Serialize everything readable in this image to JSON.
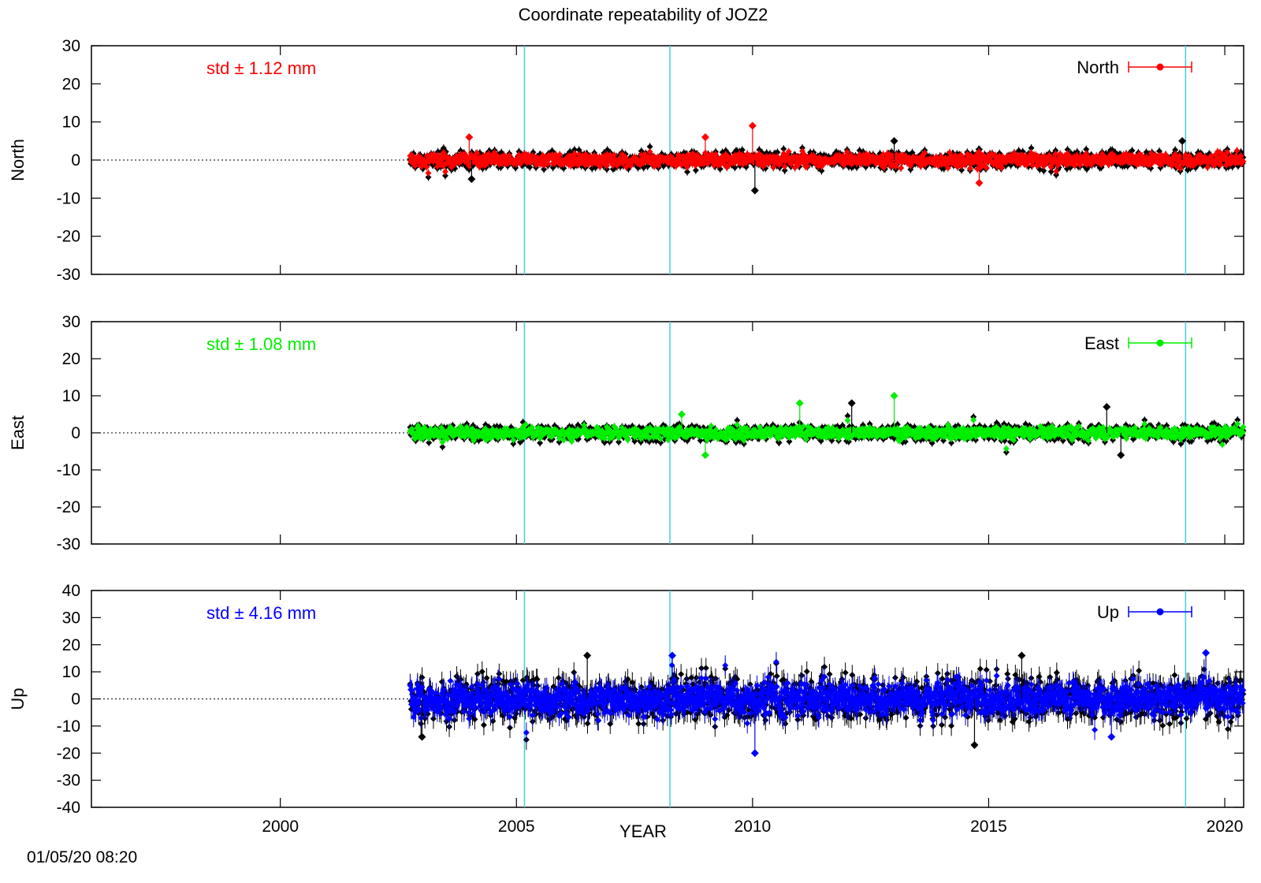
{
  "title": "Coordinate repeatability of JOZ2",
  "timestamp": "01/05/20 08:20",
  "xlabel": "YEAR",
  "colors": {
    "North": "#ff0000",
    "East": "#00ee00",
    "Up": "#0000ff",
    "shadow": "#000000",
    "event_lines": "#40d0e0"
  },
  "chart_data": {
    "type": "scatter",
    "x_range": [
      1996.0,
      2020.4
    ],
    "x_ticks": [
      2000,
      2005,
      2010,
      2015,
      2020
    ],
    "event_years": [
      2005.17,
      2008.25,
      2019.17
    ],
    "data_start": 2002.75,
    "data_end": 2020.4,
    "panels": [
      {
        "name": "North",
        "ylabel": "North",
        "legend": "North",
        "std_label": "std ± 1.12 mm",
        "std": 1.12,
        "ylim": [
          -30,
          30
        ],
        "yticks": [
          -30,
          -20,
          -10,
          0,
          10,
          20,
          30
        ],
        "spikes": [
          [
            2010.0,
            9
          ],
          [
            2010.05,
            -8
          ],
          [
            2009.0,
            6
          ],
          [
            2013.0,
            5
          ],
          [
            2014.8,
            -6
          ],
          [
            2019.1,
            5
          ],
          [
            2004.0,
            6
          ],
          [
            2004.05,
            -5
          ]
        ]
      },
      {
        "name": "East",
        "ylabel": "East",
        "legend": "East",
        "std_label": "std ± 1.08 mm",
        "std": 1.08,
        "ylim": [
          -30,
          30
        ],
        "yticks": [
          -30,
          -20,
          -10,
          0,
          10,
          20,
          30
        ],
        "spikes": [
          [
            2013.0,
            10
          ],
          [
            2012.1,
            8
          ],
          [
            2011.0,
            8
          ],
          [
            2017.5,
            7
          ],
          [
            2009.0,
            -6
          ],
          [
            2017.8,
            -6
          ],
          [
            2008.5,
            5
          ]
        ]
      },
      {
        "name": "Up",
        "ylabel": "Up",
        "legend": "Up",
        "std_label": "std ± 4.16 mm",
        "std": 4.16,
        "ylim": [
          -40,
          40
        ],
        "yticks": [
          -40,
          -30,
          -20,
          -10,
          0,
          10,
          20,
          30,
          40
        ],
        "spikes": [
          [
            2010.05,
            -20
          ],
          [
            2014.7,
            -17
          ],
          [
            2019.6,
            17
          ],
          [
            2006.5,
            16
          ],
          [
            2008.3,
            16
          ],
          [
            2003.0,
            -14
          ],
          [
            2017.6,
            -14
          ],
          [
            2015.7,
            16
          ]
        ]
      }
    ]
  }
}
